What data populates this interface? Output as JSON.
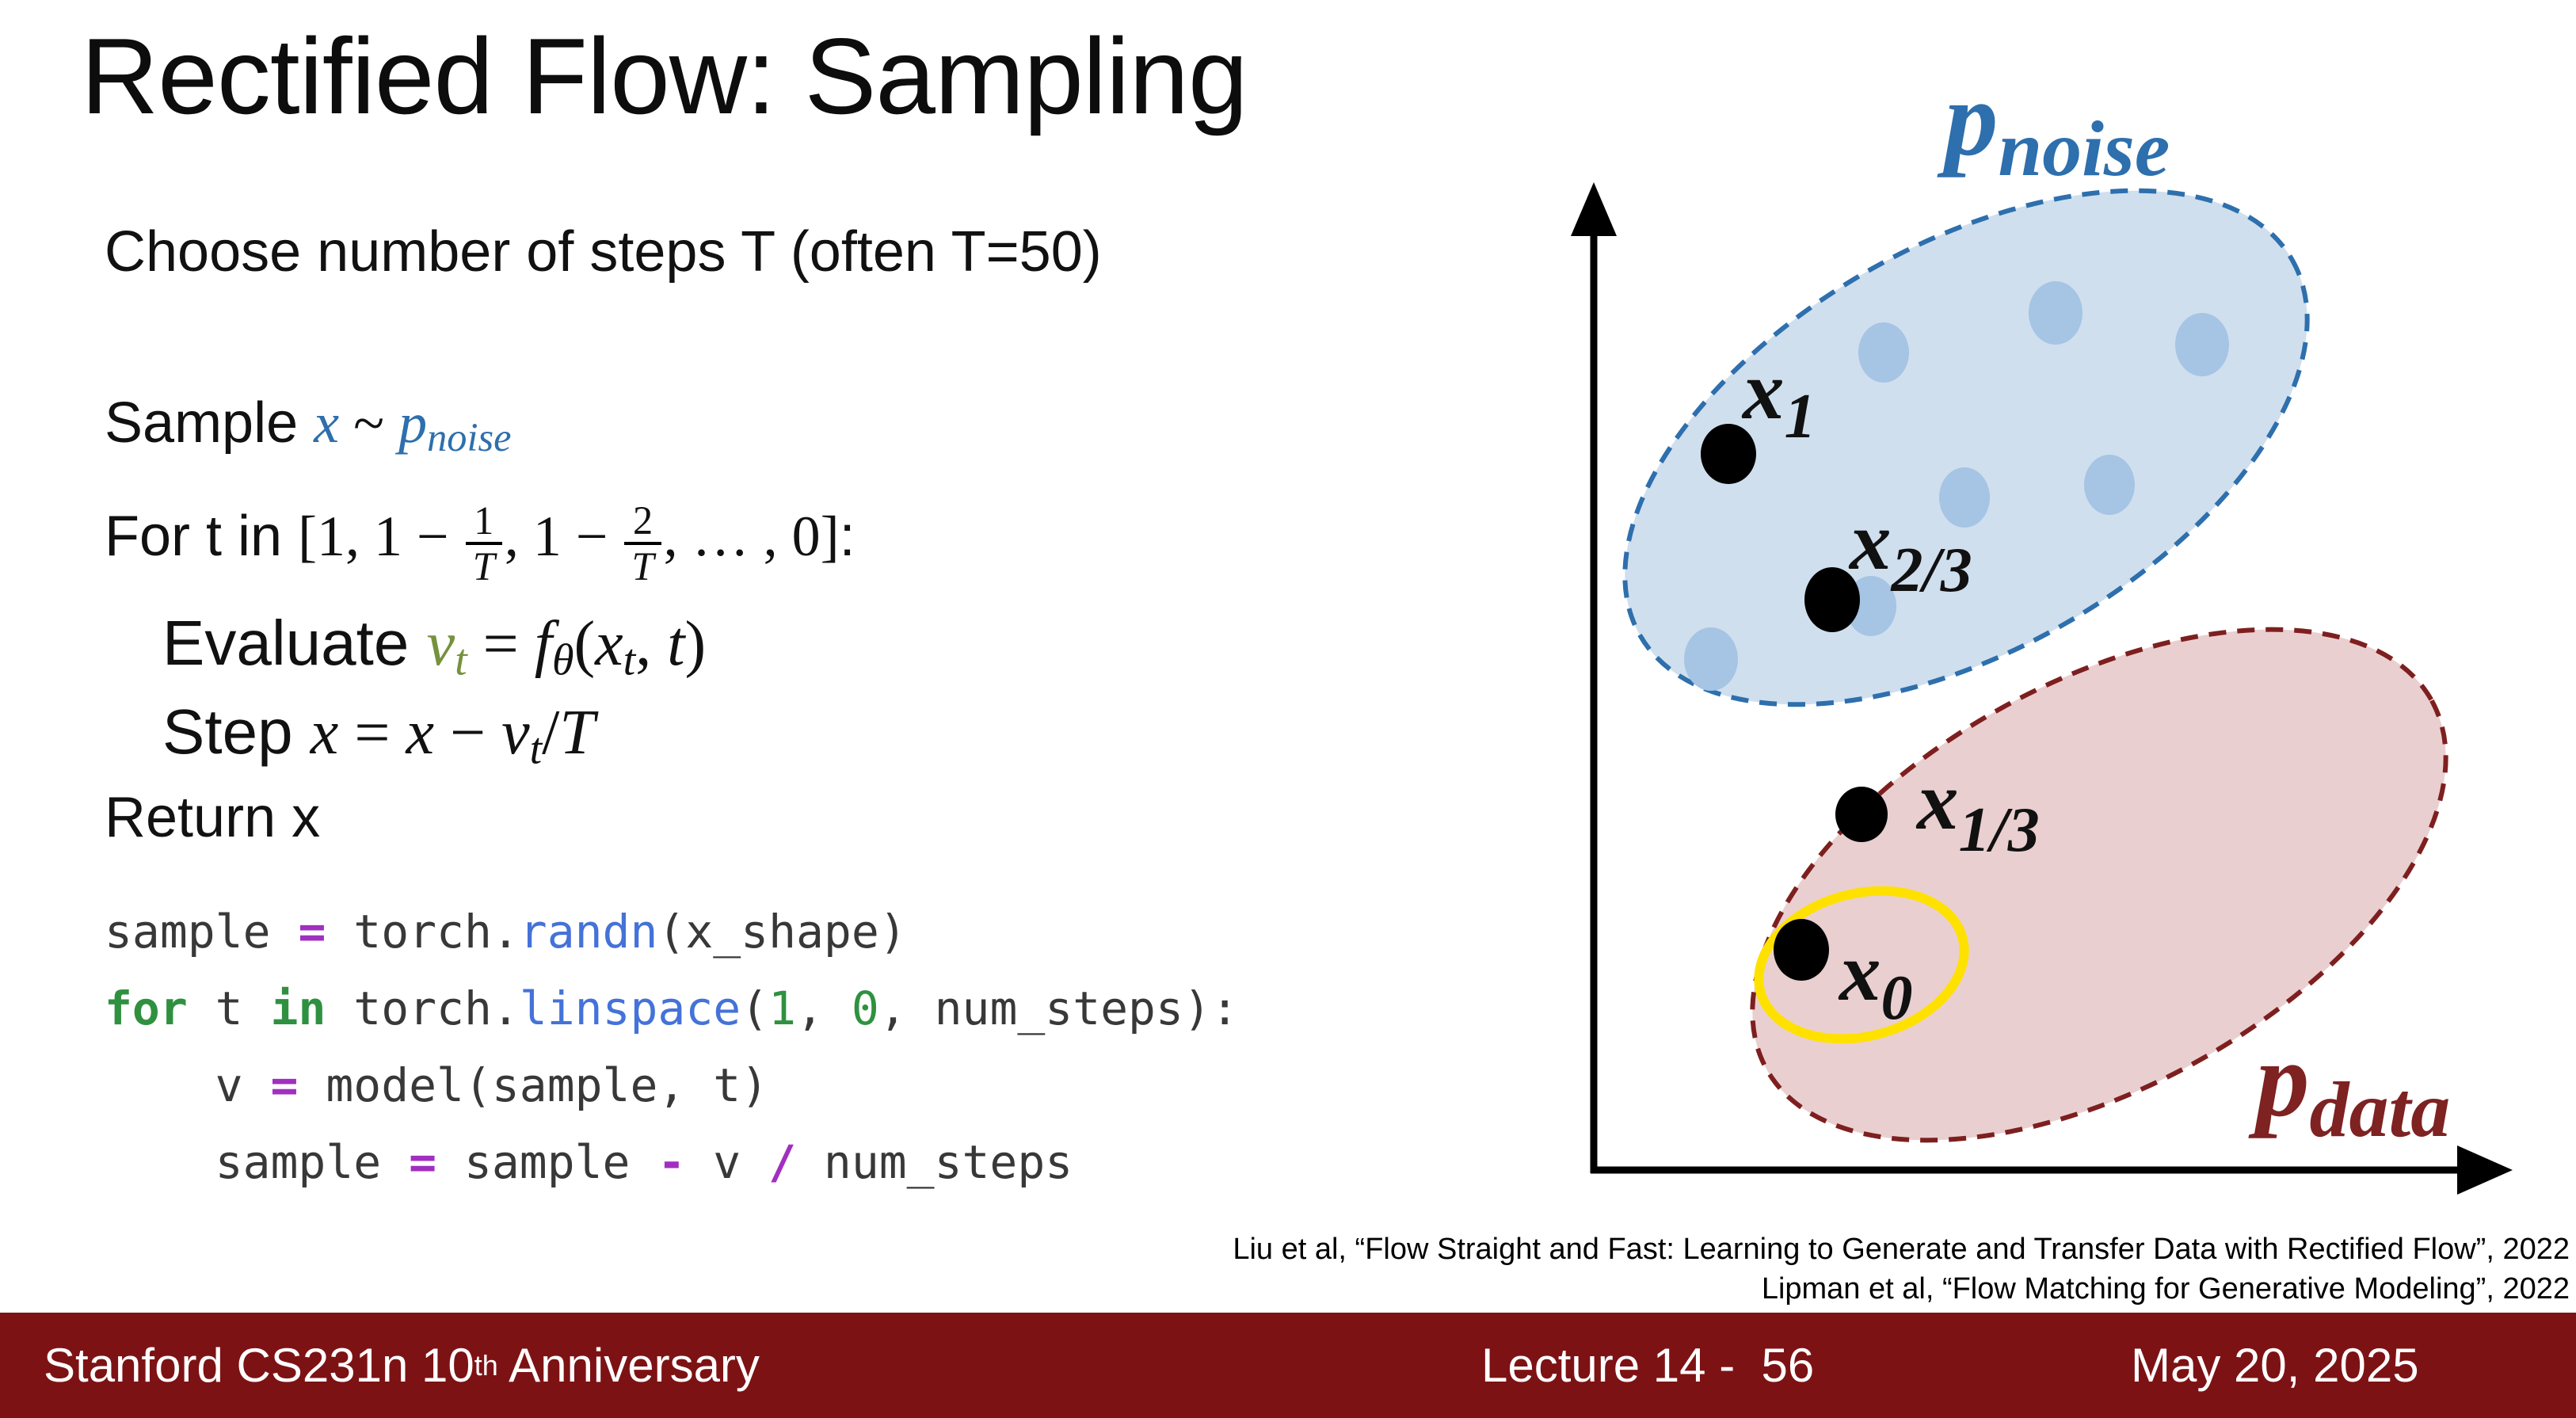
{
  "slide": {
    "title": "Rectified Flow: Sampling",
    "algorithm": {
      "choose_line": "Choose number of steps T (often T=50)",
      "sample_line": [
        {
          "t": "Sample ",
          "c": ""
        },
        {
          "t": "x",
          "c": "mi blue"
        },
        {
          "t": " ~ ",
          "c": "mu"
        },
        {
          "t": "p",
          "c": "mi blue"
        },
        {
          "t": "noise",
          "c": "mi blue sub"
        }
      ],
      "for_line": [
        {
          "t": "For t in ",
          "c": ""
        },
        {
          "t": "[",
          "c": "mu"
        },
        {
          "t": "1, 1 − ",
          "c": "mu"
        },
        {
          "n": "1",
          "d": "T"
        },
        {
          "t": ", 1 − ",
          "c": "mu"
        },
        {
          "n": "2",
          "d": "T"
        },
        {
          "t": ", … , 0",
          "c": "mu"
        },
        {
          "t": "]",
          "c": "mu"
        },
        {
          "t": ":",
          "c": ""
        }
      ],
      "evaluate_line": [
        {
          "t": "Evaluate ",
          "c": ""
        },
        {
          "t": "v",
          "c": "mi olive"
        },
        {
          "t": "t",
          "c": "mi olive sub"
        },
        {
          "t": " = ",
          "c": "mu"
        },
        {
          "t": "f",
          "c": "mi"
        },
        {
          "t": "θ",
          "c": "mi sub"
        },
        {
          "t": "(",
          "c": "mu"
        },
        {
          "t": "x",
          "c": "mi"
        },
        {
          "t": "t",
          "c": "mi sub"
        },
        {
          "t": ", ",
          "c": "mu"
        },
        {
          "t": "t",
          "c": "mi"
        },
        {
          "t": ")",
          "c": "mu"
        }
      ],
      "step_line": [
        {
          "t": "Step ",
          "c": ""
        },
        {
          "t": "x",
          "c": "mi"
        },
        {
          "t": " = ",
          "c": "mu"
        },
        {
          "t": "x",
          "c": "mi"
        },
        {
          "t": " − ",
          "c": "mu"
        },
        {
          "t": "v",
          "c": "mi"
        },
        {
          "t": "t",
          "c": "mi sub"
        },
        {
          "t": "/",
          "c": "mu"
        },
        {
          "t": "T",
          "c": "mi"
        }
      ],
      "return_line": "Return x"
    },
    "code": {
      "lines": [
        [
          {
            "t": "sample ",
            "c": "cd"
          },
          {
            "t": "=",
            "c": "co"
          },
          {
            "t": " torch.",
            "c": "cd"
          },
          {
            "t": "randn",
            "c": "cb"
          },
          {
            "t": "(x_shape)",
            "c": "cd"
          }
        ],
        [
          {
            "t": "for",
            "c": "ck"
          },
          {
            "t": " t ",
            "c": "cd"
          },
          {
            "t": "in",
            "c": "ck"
          },
          {
            "t": " torch.",
            "c": "cd"
          },
          {
            "t": "linspace",
            "c": "cb"
          },
          {
            "t": "(",
            "c": "cd"
          },
          {
            "t": "1",
            "c": "cn"
          },
          {
            "t": ", ",
            "c": "cd"
          },
          {
            "t": "0",
            "c": "cn"
          },
          {
            "t": ", num_steps):",
            "c": "cd"
          }
        ],
        [
          {
            "t": "    v ",
            "c": "cd"
          },
          {
            "t": "=",
            "c": "co"
          },
          {
            "t": " model(sample, t)",
            "c": "cd"
          }
        ],
        [
          {
            "t": "    sample ",
            "c": "cd"
          },
          {
            "t": "=",
            "c": "co"
          },
          {
            "t": " sample ",
            "c": "cd"
          },
          {
            "t": "-",
            "c": "co"
          },
          {
            "t": " v ",
            "c": "cd"
          },
          {
            "t": "/",
            "c": "co"
          },
          {
            "t": " num_steps",
            "c": "cd"
          }
        ]
      ]
    },
    "citations": [
      "Liu et al, “Flow Straight and Fast: Learning to Generate and Transfer Data with Rectified Flow”, 2022",
      "Lipman et al, “Flow Matching for Generative Modeling”, 2022"
    ],
    "footer": {
      "left_pre": "Stanford CS231n 10",
      "left_sup": "th",
      "left_post": " Anniversary",
      "center": "Lecture 14 -  56",
      "right": "May 20, 2025"
    }
  },
  "diagram": {
    "noise_label": {
      "main": "p",
      "sub": "noise"
    },
    "data_label": {
      "main": "p",
      "sub": "data"
    },
    "points": [
      {
        "name": "x1",
        "main": "x",
        "sub": "1"
      },
      {
        "name": "x23",
        "main": "x",
        "sub": "2/3"
      },
      {
        "name": "x13",
        "main": "x",
        "sub": "1/3"
      },
      {
        "name": "x0",
        "main": "x",
        "sub": "0"
      }
    ]
  },
  "colors": {
    "noise_fill": "#cfdfee",
    "noise_border": "#2e6fad",
    "noise_inner_dots": "#a6c4e3",
    "data_fill": "#eacfd0",
    "data_border": "#7e1f1f",
    "noise_text": "#2e6fad",
    "data_text": "#7e2222",
    "highlight_ring": "#ffe100",
    "point_fill": "#000000",
    "footer_bg": "#7d1214",
    "footer_text": "#ffffff",
    "code_keyword": "#2f9140",
    "code_builtin": "#4472d8",
    "code_operator": "#a12fc0",
    "velocity_green": "#76923c",
    "math_blue": "#2e6fad"
  }
}
